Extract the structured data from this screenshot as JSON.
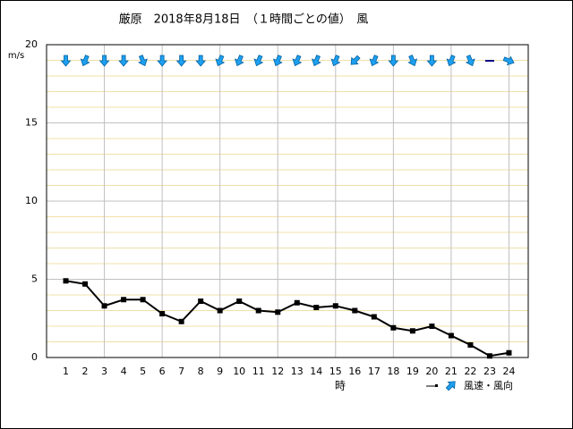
{
  "chart_data": {
    "type": "line",
    "title": "厳原　2018年8月18日　（１時間ごとの値）　風",
    "y_label": "m/s",
    "x_label": "時",
    "x": [
      1,
      2,
      3,
      4,
      5,
      6,
      7,
      8,
      9,
      10,
      11,
      12,
      13,
      14,
      15,
      16,
      17,
      18,
      19,
      20,
      21,
      22,
      23,
      24
    ],
    "series": [
      {
        "name": "風速・風向",
        "color": "#000000",
        "values": [
          4.9,
          4.7,
          3.3,
          3.7,
          3.7,
          2.8,
          2.3,
          3.6,
          3.0,
          3.6,
          3.0,
          2.9,
          3.5,
          3.2,
          3.3,
          3.0,
          2.6,
          1.9,
          1.7,
          2.0,
          1.4,
          0.8,
          0.1,
          0.3
        ]
      }
    ],
    "directions": [
      0,
      22.5,
      0,
      0,
      337.5,
      0,
      0,
      0,
      22.5,
      22.5,
      22.5,
      22.5,
      22.5,
      22.5,
      22.5,
      45,
      22.5,
      0,
      337.5,
      0,
      22.5,
      337.5,
      null,
      292.5
    ],
    "arrow_color": "#1ea0f0",
    "xlim": [
      0,
      25
    ],
    "ylim": [
      0,
      20
    ],
    "xticks": [
      1,
      2,
      3,
      4,
      5,
      6,
      7,
      8,
      9,
      10,
      11,
      12,
      13,
      14,
      15,
      16,
      17,
      18,
      19,
      20,
      21,
      22,
      23,
      24
    ],
    "yticks": [
      0,
      5,
      10,
      15,
      20
    ],
    "grid": true
  }
}
